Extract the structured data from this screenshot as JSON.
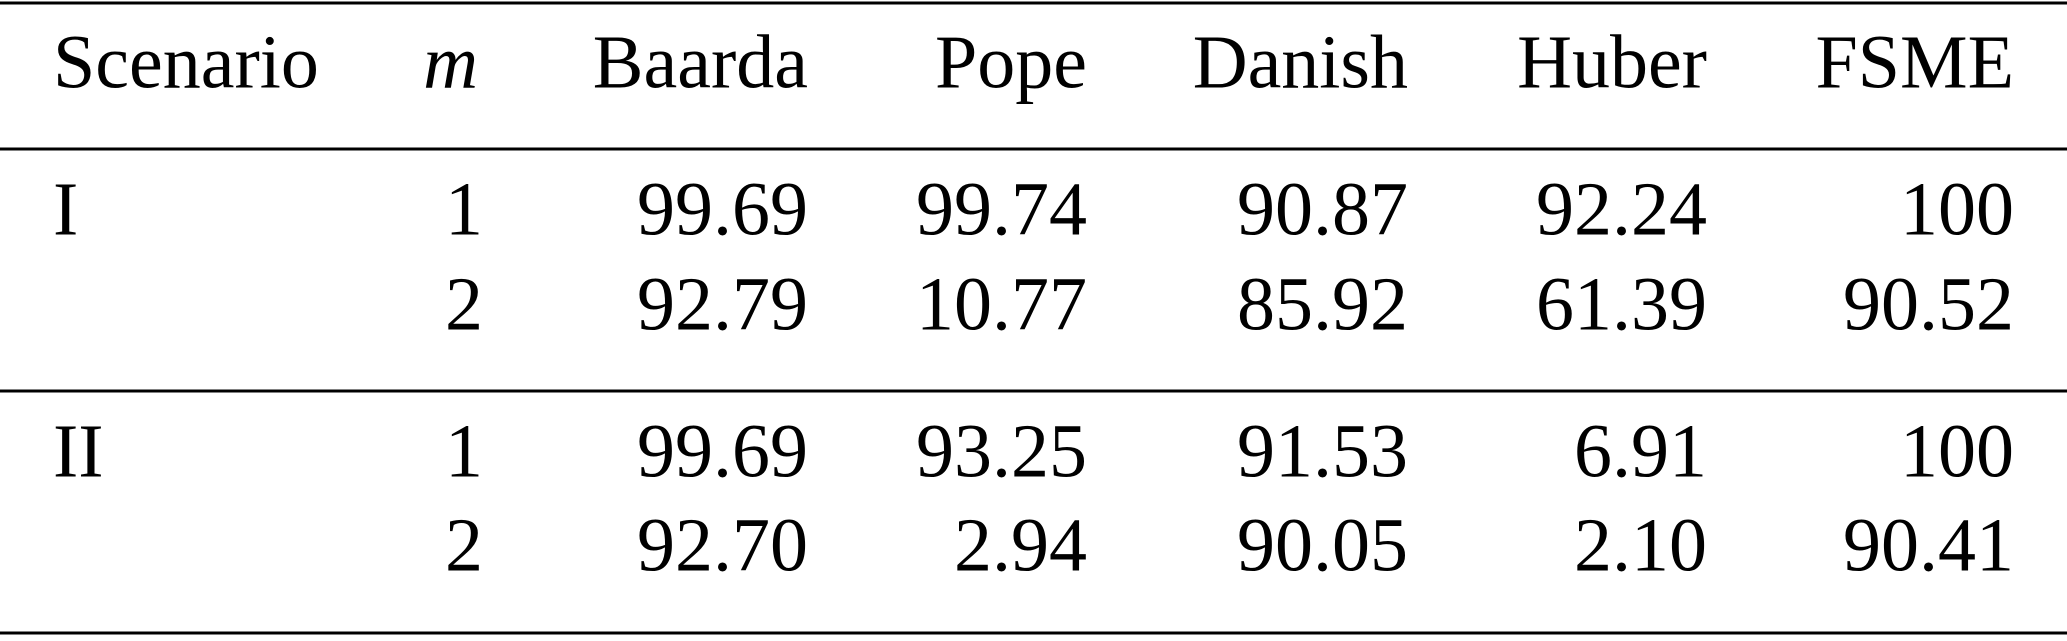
{
  "table": {
    "header": [
      "Scenario",
      "m",
      "Baarda",
      "Pope",
      "Danish",
      "Huber",
      "FSME"
    ],
    "groups": [
      {
        "scenario": "I",
        "rows": [
          [
            "1",
            "99.69",
            "99.74",
            "90.87",
            "92.24",
            "100"
          ],
          [
            "2",
            "92.79",
            "10.77",
            "85.92",
            "61.39",
            "90.52"
          ]
        ]
      },
      {
        "scenario": "II",
        "rows": [
          [
            "1",
            "99.69",
            "93.25",
            "91.53",
            "6.91",
            "100"
          ],
          [
            "2",
            "92.70",
            "2.94",
            "90.05",
            "2.10",
            "90.41"
          ]
        ]
      }
    ]
  }
}
